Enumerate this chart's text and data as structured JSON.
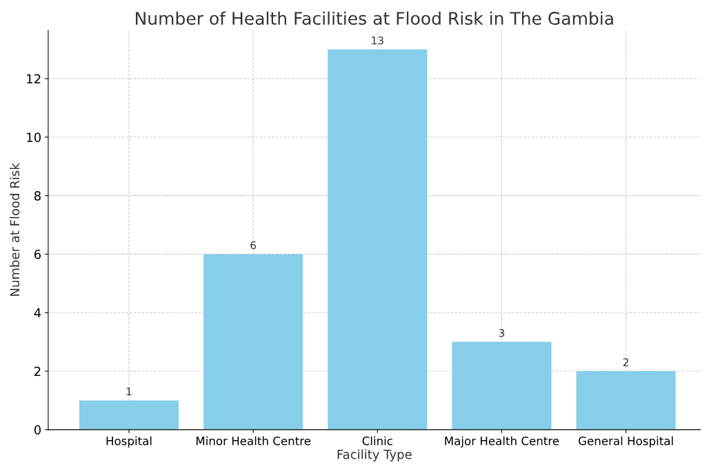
{
  "chart_data": {
    "type": "bar",
    "title": "Number of Health Facilities at Flood Risk in The Gambia",
    "xlabel": "Facility Type",
    "ylabel": "Number at Flood Risk",
    "categories": [
      "Hospital",
      "Minor Health Centre",
      "Clinic",
      "Major Health Centre",
      "General Hospital"
    ],
    "values": [
      1,
      6,
      13,
      3,
      2
    ],
    "color": "#87ceeb",
    "ylim": [
      0,
      13.65
    ],
    "yticks": [
      0,
      2,
      4,
      6,
      8,
      10,
      12
    ],
    "grid": true,
    "data_labels": true
  }
}
